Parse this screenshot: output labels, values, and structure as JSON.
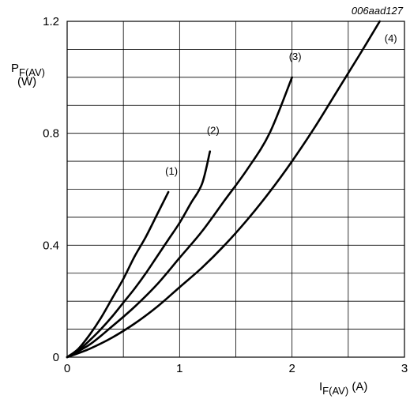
{
  "chart_data": {
    "type": "line",
    "figure_code": "006aad127",
    "ylabel": {
      "main": "P",
      "sub": "F(AV)",
      "unit": "(W)"
    },
    "xlabel": {
      "main": "I",
      "sub": "F(AV)",
      "unit": " (A)"
    },
    "xlim": [
      0,
      3
    ],
    "ylim": [
      0,
      1.2
    ],
    "x_ticks": [
      {
        "value": 0,
        "label": "0"
      },
      {
        "value": 1,
        "label": "1"
      },
      {
        "value": 2,
        "label": "2"
      },
      {
        "value": 3,
        "label": "3"
      }
    ],
    "y_ticks": [
      {
        "value": 0,
        "label": "0"
      },
      {
        "value": 0.4,
        "label": "0.4"
      },
      {
        "value": 0.8,
        "label": "0.8"
      },
      {
        "value": 1.2,
        "label": "1.2"
      }
    ],
    "x_grid_step": 0.5,
    "y_grid_step": 0.1,
    "grid": true,
    "series": [
      {
        "name": "(1)",
        "x": [
          0,
          0.1,
          0.2,
          0.3,
          0.4,
          0.5,
          0.6,
          0.7,
          0.8,
          0.9
        ],
        "y": [
          0,
          0.03,
          0.08,
          0.14,
          0.21,
          0.28,
          0.36,
          0.43,
          0.51,
          0.59
        ]
      },
      {
        "name": "(2)",
        "x": [
          0,
          0.1,
          0.2,
          0.3,
          0.4,
          0.5,
          0.6,
          0.7,
          0.8,
          0.9,
          1.0,
          1.1,
          1.2,
          1.27
        ],
        "y": [
          0,
          0.024,
          0.06,
          0.1,
          0.145,
          0.195,
          0.245,
          0.3,
          0.36,
          0.42,
          0.48,
          0.55,
          0.62,
          0.735
        ]
      },
      {
        "name": "(3)",
        "x": [
          0,
          0.2,
          0.4,
          0.6,
          0.8,
          1.0,
          1.2,
          1.4,
          1.6,
          1.8,
          2.0
        ],
        "y": [
          0,
          0.045,
          0.11,
          0.18,
          0.26,
          0.355,
          0.45,
          0.56,
          0.67,
          0.8,
          1.0
        ]
      },
      {
        "name": "(4)",
        "x": [
          0,
          0.2,
          0.4,
          0.6,
          0.8,
          1.0,
          1.2,
          1.4,
          1.6,
          1.8,
          2.0,
          2.2,
          2.4,
          2.6,
          2.78
        ],
        "y": [
          0,
          0.03,
          0.07,
          0.12,
          0.18,
          0.25,
          0.32,
          0.4,
          0.49,
          0.59,
          0.7,
          0.82,
          0.95,
          1.08,
          1.2
        ]
      }
    ]
  }
}
